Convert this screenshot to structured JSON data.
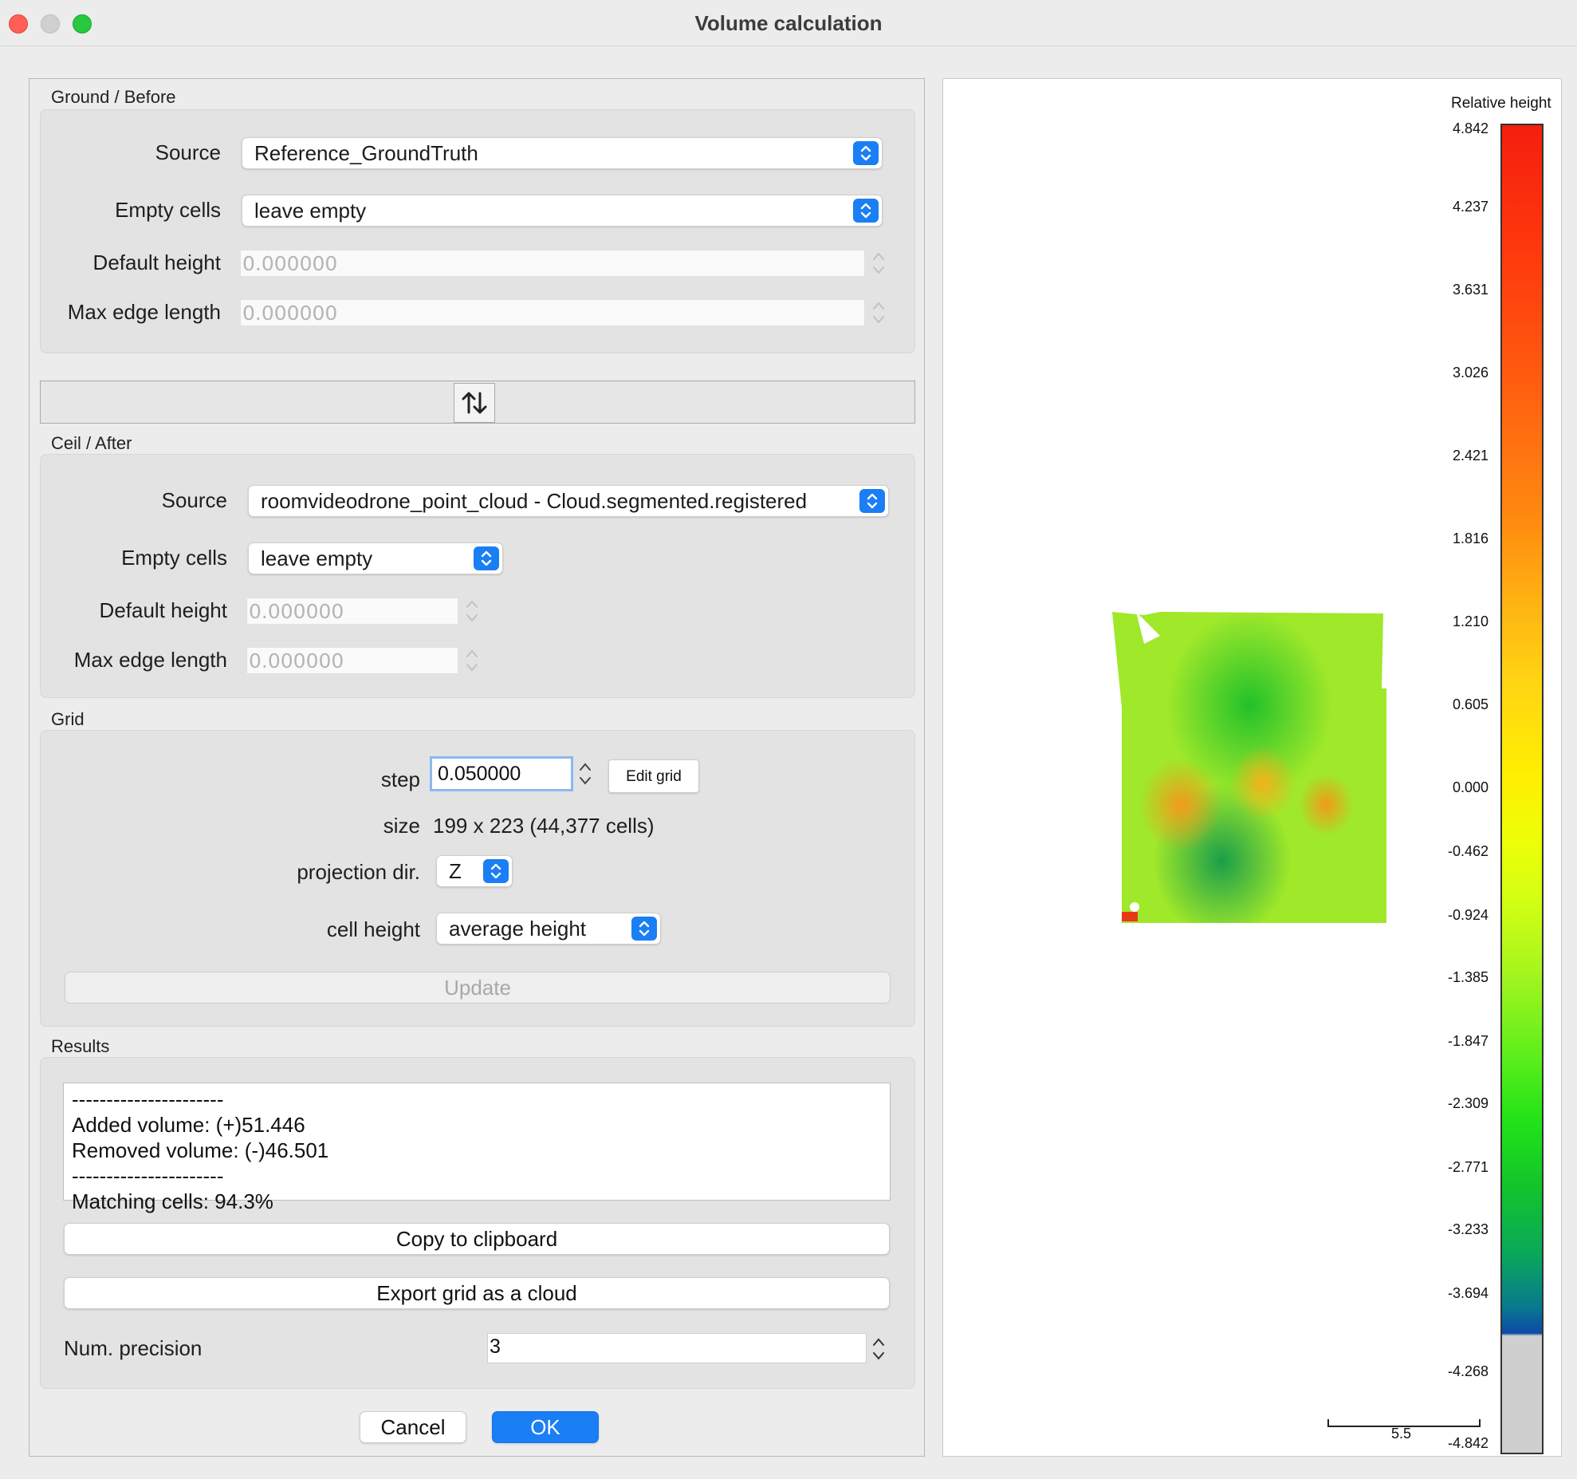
{
  "window": {
    "title": "Volume calculation"
  },
  "ground": {
    "title": "Ground / Before",
    "source_label": "Source",
    "source_value": "Reference_GroundTruth",
    "empty_cells_label": "Empty cells",
    "empty_cells_value": "leave empty",
    "default_height_label": "Default height",
    "default_height_value": "0.000000",
    "max_edge_label": "Max edge length",
    "max_edge_value": "0.000000"
  },
  "ceil": {
    "title": "Ceil / After",
    "source_label": "Source",
    "source_value": "roomvideodrone_point_cloud - Cloud.segmented.registered",
    "empty_cells_label": "Empty cells",
    "empty_cells_value": "leave empty",
    "default_height_label": "Default height",
    "default_height_value": "0.000000",
    "max_edge_label": "Max edge length",
    "max_edge_value": "0.000000"
  },
  "grid": {
    "title": "Grid",
    "step_label": "step",
    "step_value": "0.050000",
    "edit_grid_label": "Edit grid",
    "size_label": "size",
    "size_value": "199 x 223 (44,377 cells)",
    "projection_label": "projection dir.",
    "projection_value": "Z",
    "cell_height_label": "cell height",
    "cell_height_value": "average height",
    "update_label": "Update"
  },
  "results": {
    "title": "Results",
    "lines": [
      "----------------------",
      "Added volume: (+)51.446",
      "Removed volume: (-)46.501",
      "----------------------",
      "Matching cells: 94.3%"
    ],
    "copy_label": "Copy to clipboard",
    "export_label": "Export grid as a cloud",
    "precision_label": "Num. precision",
    "precision_value": "3"
  },
  "footer": {
    "cancel_label": "Cancel",
    "ok_label": "OK"
  },
  "view": {
    "scalar_field_title": "Relative height",
    "ticks": [
      "4.842",
      "4.237",
      "3.631",
      "3.026",
      "2.421",
      "1.816",
      "1.210",
      "0.605",
      "0.000",
      "-0.462",
      "-0.924",
      "-1.385",
      "-1.847",
      "-2.309",
      "-2.771",
      "-3.233",
      "-3.694",
      "-4.268",
      "-4.842"
    ],
    "scale_label": "5.5"
  },
  "colors": {
    "accent": "#1a7ef5",
    "close": "#ff5f57",
    "maximize": "#28c840"
  }
}
